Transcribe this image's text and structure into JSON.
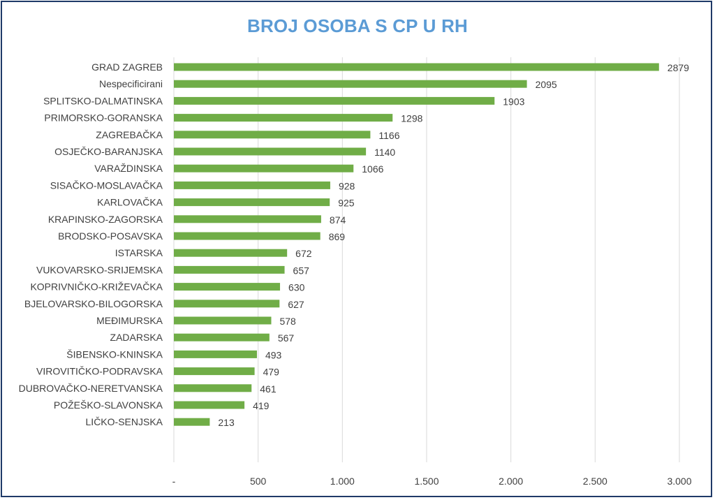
{
  "chart_data": {
    "type": "bar",
    "orientation": "horizontal",
    "title": "BROJ OSOBA S CP U RH",
    "categories": [
      "GRAD ZAGREB",
      "Nespecificirani",
      "SPLITSKO-DALMATINSKA",
      "PRIMORSKO-GORANSKA",
      "ZAGREBAČKA",
      "OSJEČKO-BARANJSKA",
      "VARAŽDINSKA",
      "SISAČKO-MOSLAVAČKA",
      "KARLOVAČKA",
      "KRAPINSKO-ZAGORSKA",
      "BRODSKO-POSAVSKA",
      "ISTARSKA",
      "VUKOVARSKO-SRIJEMSKA",
      "KOPRIVNIČKO-KRIŽEVAČKA",
      "BJELOVARSKO-BILOGORSKA",
      "MEĐIMURSKA",
      "ZADARSKA",
      "ŠIBENSKO-KNINSKA",
      "VIROVITIČKO-PODRAVSKA",
      "DUBROVAČKO-NERETVANSKA",
      "POŽEŠKO-SLAVONSKA",
      "LIČKO-SENJSKA"
    ],
    "values": [
      2879,
      2095,
      1903,
      1298,
      1166,
      1140,
      1066,
      928,
      925,
      874,
      869,
      672,
      657,
      630,
      627,
      578,
      567,
      493,
      479,
      461,
      419,
      213
    ],
    "value_labels": [
      "2879",
      "2095",
      "1903",
      "1298",
      "1166",
      "1140",
      "1066",
      "928",
      "925",
      "874",
      "869",
      "672",
      "657",
      "630",
      "627",
      "578",
      "567",
      "493",
      "479",
      "461",
      "419",
      "213"
    ],
    "xlim": [
      0,
      3000
    ],
    "x_ticks": [
      0,
      500,
      1000,
      1500,
      2000,
      2500,
      3000
    ],
    "x_tick_labels": [
      "-",
      "500",
      "1.000",
      "1.500",
      "2.000",
      "2.500",
      "3.000"
    ],
    "grid": true,
    "legend": "none",
    "colors": {
      "bar": "#70ad47",
      "grid": "#d9d9d9",
      "title": "#5b9bd5",
      "text": "#404040",
      "border": "#1f3a68"
    }
  }
}
